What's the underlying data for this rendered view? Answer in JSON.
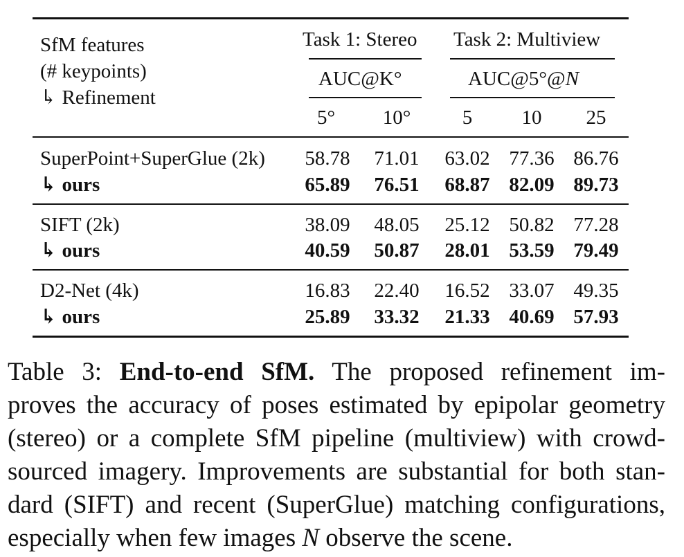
{
  "table": {
    "header": {
      "col0_lines": [
        "SfM features",
        "(# keypoints)",
        "↳ Refinement"
      ],
      "task1": "Task 1: Stereo",
      "task2": "Task 2: Multiview",
      "metric1": "AUC@K°",
      "metric2_prefix": "AUC@5°@",
      "metric2_var": "N",
      "sub": [
        "5°",
        "10°",
        "5",
        "10",
        "25"
      ]
    },
    "groups": [
      {
        "name": "SuperPoint+SuperGlue (2k)",
        "values": [
          "58.78",
          "71.01",
          "63.02",
          "77.36",
          "86.76"
        ],
        "ref_name": "↳ ours",
        "ref_values": [
          "65.89",
          "76.51",
          "68.87",
          "82.09",
          "89.73"
        ]
      },
      {
        "name": "SIFT (2k)",
        "values": [
          "38.09",
          "48.05",
          "25.12",
          "50.82",
          "77.28"
        ],
        "ref_name": "↳ ours",
        "ref_values": [
          "40.59",
          "50.87",
          "28.01",
          "53.59",
          "79.49"
        ]
      },
      {
        "name": "D2-Net (4k)",
        "values": [
          "16.83",
          "22.40",
          "16.52",
          "33.07",
          "49.35"
        ],
        "ref_name": "↳ ours",
        "ref_values": [
          "25.89",
          "33.32",
          "21.33",
          "40.69",
          "57.93"
        ]
      }
    ]
  },
  "caption": {
    "label": "Table 3:",
    "title": "End-to-end SfM.",
    "line1_rest": "The proposed refinement im-",
    "line2": "proves the accuracy of poses estimated by epipolar geometry",
    "line3": "(stereo) or a complete SfM pipeline (multiview) with crowd-",
    "line4": "sourced imagery. Improvements are substantial for both stan-",
    "line5": "dard (SIFT) and recent (SuperGlue) matching configurations,",
    "line6_pre": "especially when few images",
    "line6_var": "N",
    "line6_post": "observe the scene."
  }
}
